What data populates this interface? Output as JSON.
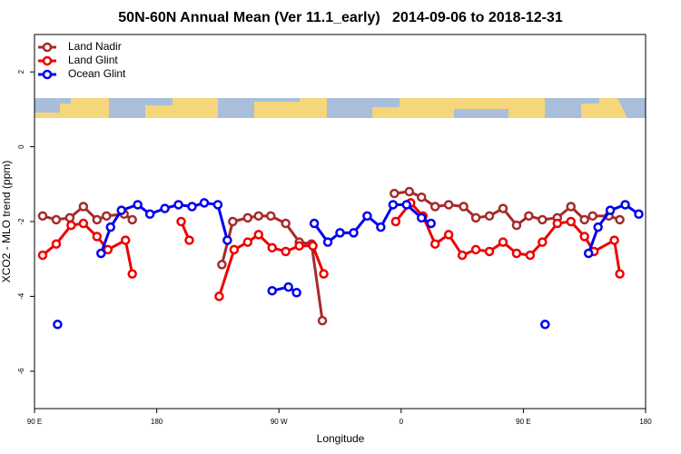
{
  "chart_data": {
    "type": "line",
    "title": "50N-60N Annual Mean (Ver 11.1_early)   2014-09-06 to 2018-12-31",
    "x_label": "Longitude",
    "y_label": "XCO2 - MLO trend (ppm)",
    "xlim": [
      90,
      540
    ],
    "xticks": [
      {
        "value": 90,
        "label": "90 E"
      },
      180,
      {
        "value": 270,
        "label": "90 W"
      },
      {
        "value": 360,
        "label": "0"
      },
      {
        "value": 450,
        "label": "90 E"
      },
      {
        "value": 540,
        "label": "180"
      }
    ],
    "ylim": [
      -7,
      3
    ],
    "yticks": [
      -6,
      -4,
      -2,
      0,
      2
    ],
    "legend": "top-left",
    "series": [
      {
        "name": "Land Nadir",
        "color": "#a52a2a",
        "x": [
          96,
          106,
          116,
          126,
          136,
          143,
          156,
          162,
          195,
          228,
          236,
          247,
          255,
          264,
          275,
          285,
          294,
          302,
          330,
          355,
          366,
          375,
          385,
          395,
          406,
          415,
          425,
          435,
          445,
          454,
          464,
          475,
          485,
          495,
          501,
          513,
          521
        ],
        "values": [
          -1.85,
          -1.95,
          -1.9,
          -1.6,
          -1.95,
          -1.85,
          -1.8,
          -1.95,
          null,
          -3.15,
          -2.0,
          -1.9,
          -1.85,
          -1.85,
          -2.05,
          -2.55,
          -2.6,
          -4.65,
          null,
          -1.25,
          -1.2,
          -1.35,
          -1.6,
          -1.55,
          -1.6,
          -1.9,
          -1.85,
          -1.65,
          -2.1,
          -1.85,
          -1.95,
          -1.9,
          -1.6,
          -1.95,
          -1.85,
          -1.85,
          -1.95
        ]
      },
      {
        "name": "Land Glint",
        "color": "#ee0000",
        "x": [
          96,
          106,
          117,
          126,
          136,
          144,
          157,
          162,
          180,
          198,
          204,
          215,
          226,
          237,
          247,
          255,
          265,
          275,
          285,
          295,
          303,
          330,
          356,
          367,
          376,
          385,
          395,
          405,
          415,
          425,
          435,
          445,
          455,
          464,
          475,
          485,
          495,
          502,
          517,
          521
        ],
        "values": [
          -2.9,
          -2.6,
          -2.1,
          -2.05,
          -2.4,
          -2.75,
          -2.5,
          -3.4,
          null,
          -2.0,
          -2.5,
          null,
          -4.0,
          -2.75,
          -2.55,
          -2.35,
          -2.7,
          -2.8,
          -2.65,
          -2.65,
          -3.4,
          null,
          -2.0,
          -1.5,
          -1.85,
          -2.6,
          -2.35,
          -2.9,
          -2.75,
          -2.8,
          -2.55,
          -2.85,
          -2.9,
          -2.55,
          -2.05,
          -2.0,
          -2.4,
          -2.8,
          -2.5,
          -3.4
        ]
      },
      {
        "name": "Ocean Glint",
        "color": "#0000ee",
        "x": [
          107,
          123,
          139,
          146,
          154,
          166,
          175,
          186,
          196,
          206,
          215,
          225,
          232,
          250,
          265,
          277,
          283,
          290,
          296,
          306,
          315,
          325,
          335,
          345,
          354,
          364,
          375,
          382,
          420,
          466,
          480,
          498,
          505,
          514,
          525,
          535
        ],
        "values": [
          -4.75,
          null,
          -2.85,
          -2.15,
          -1.7,
          -1.55,
          -1.8,
          -1.65,
          -1.55,
          -1.6,
          -1.5,
          -1.55,
          -2.5,
          null,
          -3.85,
          -3.75,
          -3.9,
          null,
          -2.05,
          -2.55,
          -2.3,
          -2.3,
          -1.85,
          -2.15,
          -1.55,
          -1.55,
          -1.9,
          -2.05,
          null,
          -4.75,
          null,
          -2.85,
          -2.15,
          -1.7,
          -1.55,
          -1.8
        ]
      }
    ]
  }
}
